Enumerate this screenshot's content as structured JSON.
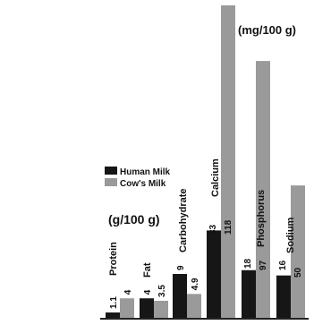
{
  "chart_data": {
    "type": "bar",
    "categories": [
      "Protein",
      "Fat",
      "Carbohydrate",
      "Calcium",
      "Phosphorus",
      "Sodium"
    ],
    "series": [
      {
        "name": "Human Milk",
        "values": [
          1.1,
          4,
          9,
          33,
          18,
          16
        ]
      },
      {
        "name": "Cow's Milk",
        "values": [
          4,
          3.5,
          4.9,
          118,
          97,
          50
        ]
      }
    ],
    "value_labels": [
      [
        "1.1",
        "4",
        "9",
        "33",
        "18",
        "16"
      ],
      [
        "4",
        "3.5",
        "4.9",
        "118",
        "97",
        "50"
      ]
    ],
    "units": [
      "(g/100 g)",
      "(mg/100 g)"
    ],
    "unit_groups": [
      [
        "Protein",
        "Fat",
        "Carbohydrate"
      ],
      [
        "Calcium",
        "Phosphorus",
        "Sodium"
      ]
    ],
    "legend": {
      "position": "left",
      "entries": [
        "Human Milk",
        "Cow's Milk"
      ]
    },
    "colors": {
      "human": "#161616",
      "cow": "#9a9a9a",
      "axis": "#222222"
    },
    "ylim_mg": [
      0,
      118
    ],
    "grid": false
  }
}
